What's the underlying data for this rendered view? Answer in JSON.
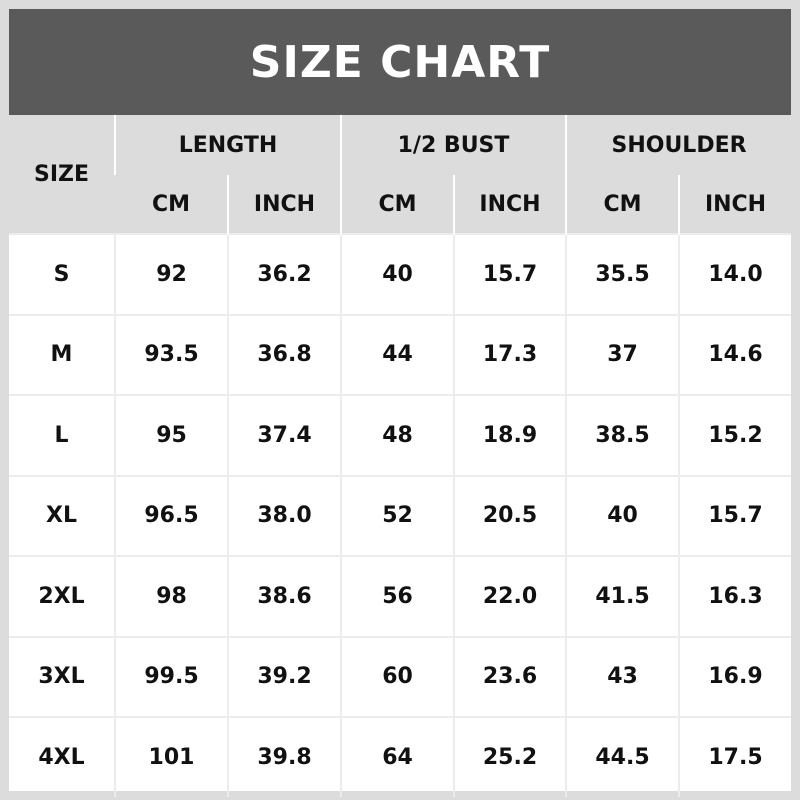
{
  "title": "SIZE CHART",
  "colors": {
    "title_bg": "#5a5a5a",
    "header_bg": "#dcdcdc",
    "title_text": "#ffffff"
  },
  "header": {
    "size": "SIZE",
    "groups": [
      "LENGTH",
      "1/2 BUST",
      "SHOULDER"
    ],
    "units": [
      "CM",
      "INCH",
      "CM",
      "INCH",
      "CM",
      "INCH"
    ]
  },
  "rows": [
    [
      "S",
      "92",
      "36.2",
      "40",
      "15.7",
      "35.5",
      "14.0"
    ],
    [
      "M",
      "93.5",
      "36.8",
      "44",
      "17.3",
      "37",
      "14.6"
    ],
    [
      "L",
      "95",
      "37.4",
      "48",
      "18.9",
      "38.5",
      "15.2"
    ],
    [
      "XL",
      "96.5",
      "38.0",
      "52",
      "20.5",
      "40",
      "15.7"
    ],
    [
      "2XL",
      "98",
      "38.6",
      "56",
      "22.0",
      "41.5",
      "16.3"
    ],
    [
      "3XL",
      "99.5",
      "39.2",
      "60",
      "23.6",
      "43",
      "16.9"
    ],
    [
      "4XL",
      "101",
      "39.8",
      "64",
      "25.2",
      "44.5",
      "17.5"
    ]
  ]
}
